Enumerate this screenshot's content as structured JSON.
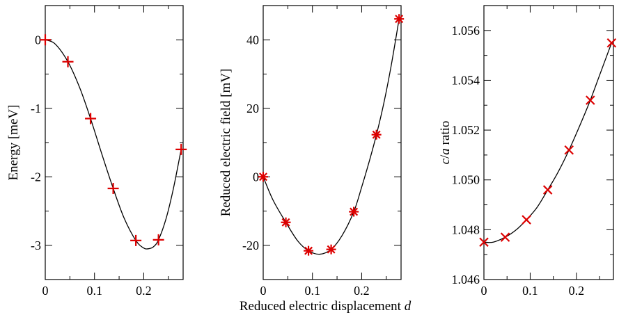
{
  "figure": {
    "shared_xlabel": "Reduced electric displacement d",
    "shared_xlabel_main": "Reduced electric displacement ",
    "shared_xlabel_italic": "d"
  },
  "chart_data": [
    {
      "type": "scatter",
      "title": "",
      "xlabel": "",
      "ylabel": "Energy [meV]",
      "xlim": [
        0,
        0.28
      ],
      "ylim": [
        -3.5,
        0.5
      ],
      "grid": false,
      "marker": "plus",
      "marker_color": "#dd0000",
      "curve_color": "#000000",
      "x_ticks": [
        0,
        0.1,
        0.2
      ],
      "x_tick_labels": [
        "0",
        "0.1",
        "0.2"
      ],
      "y_ticks": [
        0,
        -1,
        -2,
        -3
      ],
      "y_tick_labels": [
        "0",
        "-1",
        "-2",
        "-3"
      ],
      "y_minor_ticks": [
        0.5,
        -0.5,
        -1.5,
        -2.5,
        -3.5
      ],
      "x": [
        0,
        0.046,
        0.092,
        0.138,
        0.184,
        0.23,
        0.276
      ],
      "y": [
        0,
        -0.32,
        -1.15,
        -2.17,
        -2.93,
        -2.92,
        -1.6
      ],
      "fit_curve": {
        "x": [
          0,
          0.02,
          0.046,
          0.07,
          0.092,
          0.115,
          0.138,
          0.16,
          0.184,
          0.2,
          0.21,
          0.22,
          0.23,
          0.245,
          0.26,
          0.276
        ],
        "y": [
          0,
          -0.06,
          -0.32,
          -0.7,
          -1.15,
          -1.67,
          -2.17,
          -2.6,
          -2.93,
          -3.04,
          -3.05,
          -3.02,
          -2.92,
          -2.62,
          -2.18,
          -1.6
        ]
      }
    },
    {
      "type": "scatter",
      "title": "",
      "xlabel": "",
      "ylabel": "Reduced electric field [mV]",
      "xlim": [
        0,
        0.28
      ],
      "ylim": [
        -30,
        50
      ],
      "grid": false,
      "marker": "asterisk",
      "marker_color": "#dd0000",
      "curve_color": "#000000",
      "x_ticks": [
        0,
        0.1,
        0.2
      ],
      "x_tick_labels": [
        "0",
        "0.1",
        "0.2"
      ],
      "y_ticks": [
        40,
        20,
        0,
        -20
      ],
      "y_tick_labels": [
        "40",
        "20",
        "0",
        "-20"
      ],
      "y_minor_ticks": [
        50,
        30,
        10,
        -10,
        -30
      ],
      "x": [
        0,
        0.046,
        0.092,
        0.138,
        0.184,
        0.23,
        0.276
      ],
      "y": [
        0,
        -13.3,
        -21.6,
        -21.2,
        -10.2,
        12.3,
        46.1
      ],
      "fit_curve": {
        "x": [
          0,
          0.02,
          0.046,
          0.07,
          0.092,
          0.115,
          0.138,
          0.16,
          0.184,
          0.2,
          0.215,
          0.23,
          0.245,
          0.26,
          0.276
        ],
        "y": [
          0,
          -6.8,
          -13.3,
          -18.7,
          -21.6,
          -22.6,
          -21.2,
          -17.2,
          -10.2,
          -3.0,
          4.3,
          12.3,
          21.5,
          32.5,
          46.1
        ]
      }
    },
    {
      "type": "scatter",
      "title": "",
      "xlabel": "",
      "ylabel": "c/a ratio",
      "ylabel_parts": [
        "c",
        "/",
        "a",
        " ratio"
      ],
      "xlim": [
        0,
        0.28
      ],
      "ylim": [
        1.046,
        1.057
      ],
      "grid": false,
      "marker": "cross",
      "marker_color": "#dd0000",
      "curve_color": "#000000",
      "x_ticks": [
        0,
        0.1,
        0.2
      ],
      "x_tick_labels": [
        "0",
        "0.1",
        "0.2"
      ],
      "y_ticks": [
        1.046,
        1.048,
        1.05,
        1.052,
        1.054,
        1.056
      ],
      "y_tick_labels": [
        "1.046",
        "1.048",
        "1.050",
        "1.052",
        "1.054",
        "1.056"
      ],
      "y_minor_ticks": [
        1.047,
        1.049,
        1.051,
        1.053,
        1.055,
        1.057
      ],
      "x": [
        0,
        0.046,
        0.092,
        0.138,
        0.184,
        0.23,
        0.276
      ],
      "y": [
        1.0475,
        1.0477,
        1.0484,
        1.0496,
        1.0512,
        1.0532,
        1.0555
      ],
      "fit_curve": {
        "x": [
          0,
          0.02,
          0.046,
          0.07,
          0.092,
          0.115,
          0.138,
          0.16,
          0.184,
          0.21,
          0.23,
          0.25,
          0.276
        ],
        "y": [
          1.0475,
          1.0475,
          1.0477,
          1.048,
          1.0484,
          1.0489,
          1.0496,
          1.0503,
          1.0512,
          1.0523,
          1.0532,
          1.0542,
          1.0555
        ]
      }
    }
  ]
}
